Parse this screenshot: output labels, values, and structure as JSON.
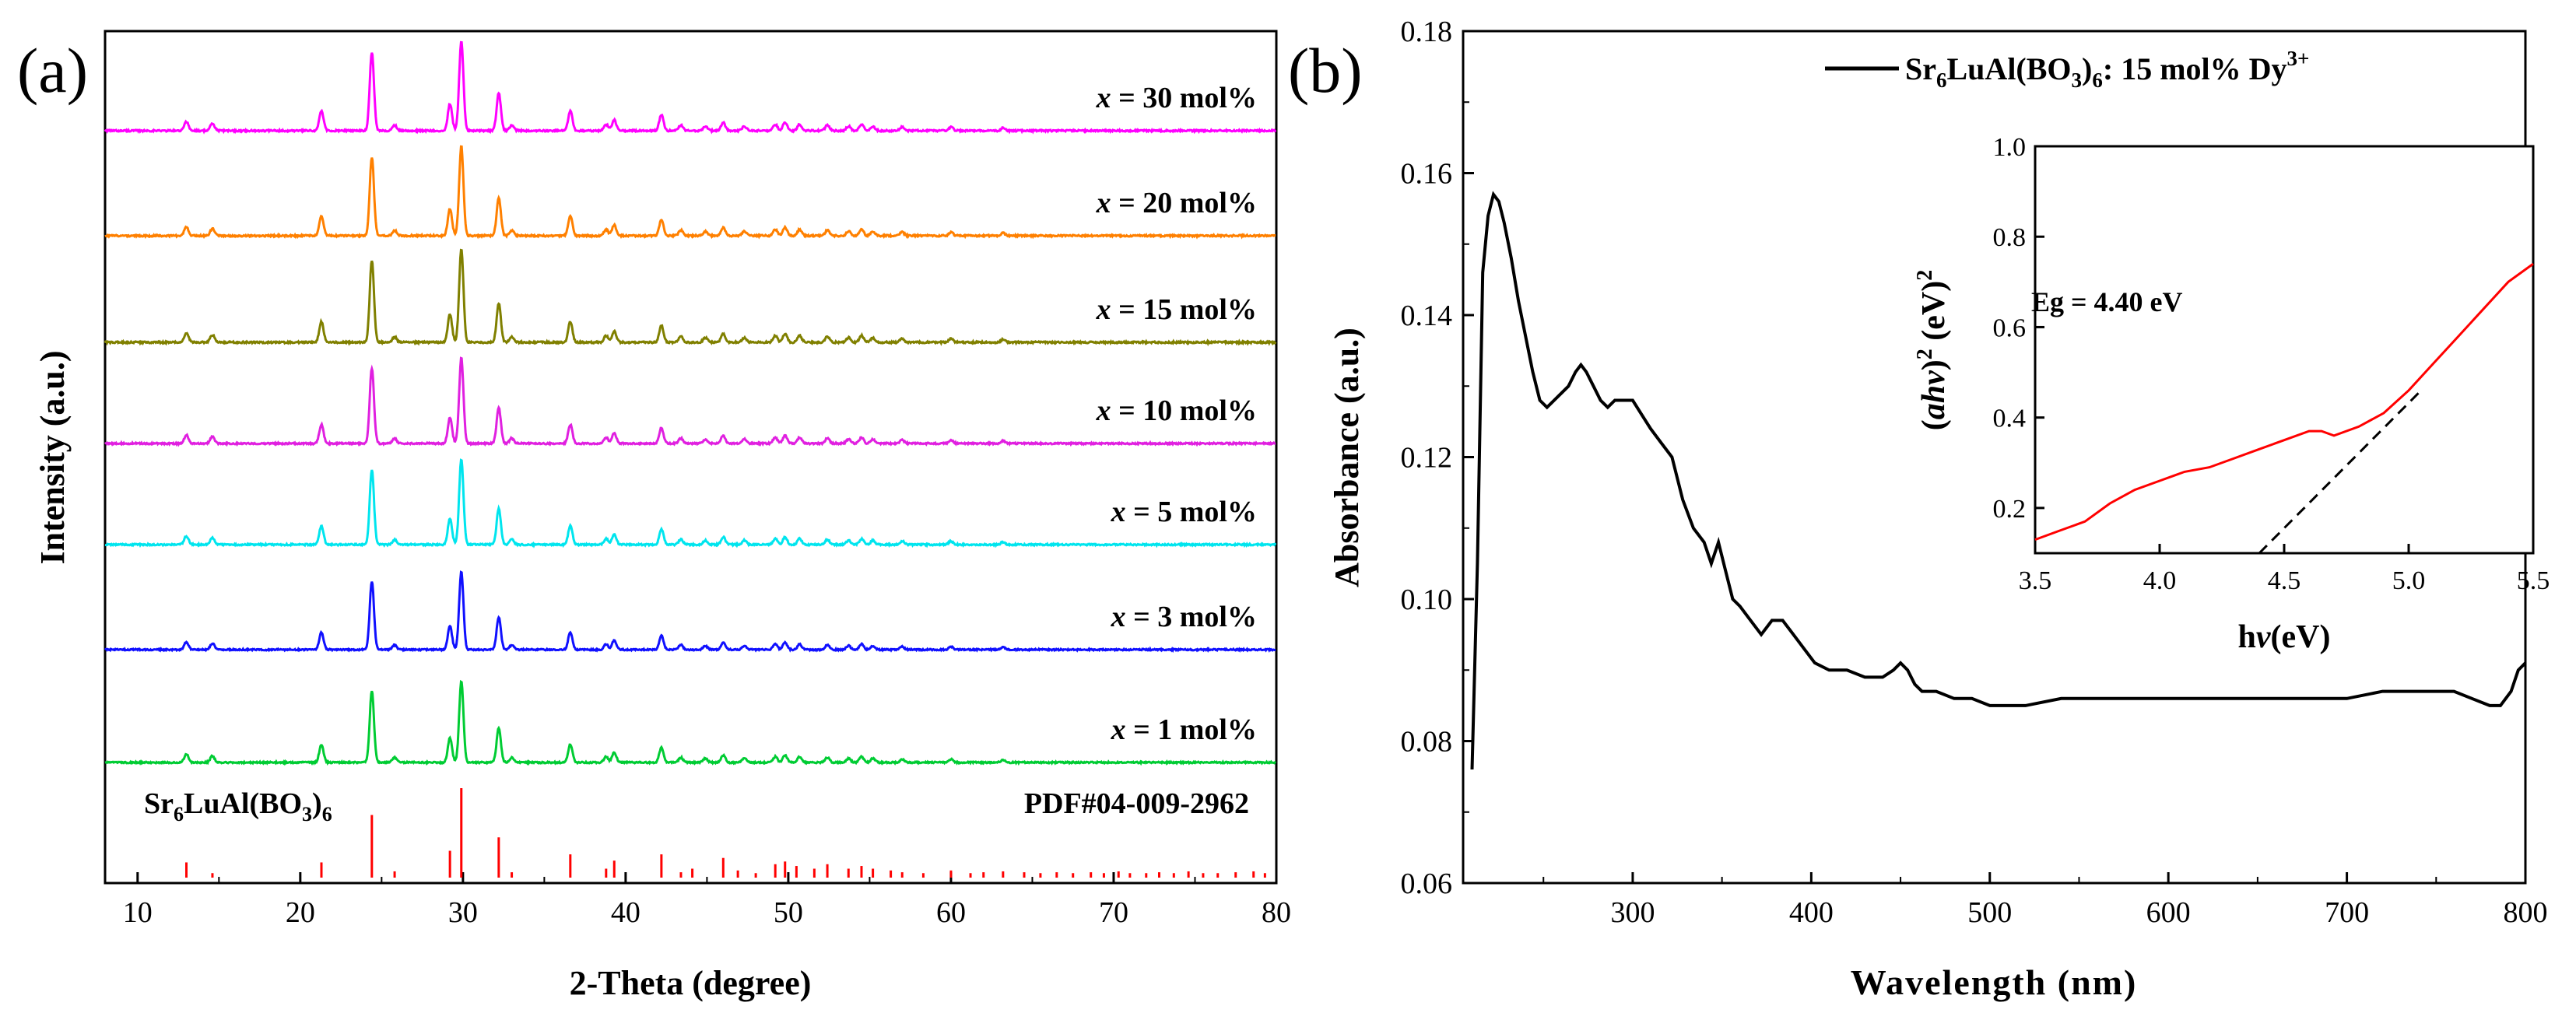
{
  "panels": {
    "a_label": "(a)",
    "b_label": "(b)"
  },
  "chart_data": [
    {
      "type": "line",
      "title": "",
      "xlabel": "2-Theta (degree)",
      "ylabel": "Intensity (a.u.)",
      "xlim": [
        8,
        80
      ],
      "xticks": [
        "10",
        "20",
        "30",
        "40",
        "50",
        "60",
        "70",
        "80"
      ],
      "series": [
        {
          "name": "x = 30 mol%",
          "prefix": "x",
          "text": " = 30 mol%",
          "color": "#ff00ff"
        },
        {
          "name": "x = 20 mol%",
          "prefix": "x",
          "text": " = 20 mol%",
          "color": "#ff8000"
        },
        {
          "name": "x = 15 mol%",
          "prefix": "x",
          "text": " = 15 mol%",
          "color": "#808000"
        },
        {
          "name": "x = 10 mol%",
          "prefix": "x",
          "text": " = 10 mol%",
          "color": "#e020e0"
        },
        {
          "name": "x = 5 mol%",
          "prefix": "x",
          "text": " = 5 mol%",
          "color": "#00e5ee"
        },
        {
          "name": "x = 3 mol%",
          "prefix": "x",
          "text": " = 3 mol%",
          "color": "#1010ff"
        },
        {
          "name": "x = 1 mol%",
          "prefix": "x",
          "text": " = 1 mol%",
          "color": "#00cc33"
        }
      ],
      "peaks": [
        {
          "x": 13.0,
          "h": 0.1
        },
        {
          "x": 14.6,
          "h": 0.08
        },
        {
          "x": 21.3,
          "h": 0.22
        },
        {
          "x": 24.4,
          "h": 0.88
        },
        {
          "x": 25.8,
          "h": 0.06
        },
        {
          "x": 29.2,
          "h": 0.3
        },
        {
          "x": 29.9,
          "h": 1.0
        },
        {
          "x": 32.2,
          "h": 0.42
        },
        {
          "x": 33.0,
          "h": 0.06
        },
        {
          "x": 36.6,
          "h": 0.22
        },
        {
          "x": 38.8,
          "h": 0.07
        },
        {
          "x": 39.3,
          "h": 0.12
        },
        {
          "x": 42.2,
          "h": 0.18
        },
        {
          "x": 43.4,
          "h": 0.06
        },
        {
          "x": 44.9,
          "h": 0.05
        },
        {
          "x": 46.0,
          "h": 0.09
        },
        {
          "x": 47.3,
          "h": 0.05
        },
        {
          "x": 49.2,
          "h": 0.07
        },
        {
          "x": 49.8,
          "h": 0.09
        },
        {
          "x": 50.7,
          "h": 0.07
        },
        {
          "x": 52.4,
          "h": 0.06
        },
        {
          "x": 53.7,
          "h": 0.05
        },
        {
          "x": 54.5,
          "h": 0.07
        },
        {
          "x": 55.2,
          "h": 0.05
        },
        {
          "x": 57.0,
          "h": 0.04
        },
        {
          "x": 60.0,
          "h": 0.04
        },
        {
          "x": 63.2,
          "h": 0.03
        }
      ],
      "reference": {
        "label_main": "Sr",
        "label_sub1": "6",
        "label_mid": "LuAl(BO",
        "label_sub2": "3",
        "label_end": ")",
        "label_sub3": "6",
        "pdf": "PDF#04-009-2962",
        "color": "#ff0000",
        "sticks": [
          {
            "x": 13.0,
            "h": 0.17
          },
          {
            "x": 14.6,
            "h": 0.05
          },
          {
            "x": 21.3,
            "h": 0.17
          },
          {
            "x": 24.4,
            "h": 0.7
          },
          {
            "x": 25.8,
            "h": 0.07
          },
          {
            "x": 29.2,
            "h": 0.3
          },
          {
            "x": 29.9,
            "h": 1.0
          },
          {
            "x": 32.2,
            "h": 0.45
          },
          {
            "x": 33.0,
            "h": 0.06
          },
          {
            "x": 36.6,
            "h": 0.26
          },
          {
            "x": 38.8,
            "h": 0.1
          },
          {
            "x": 39.3,
            "h": 0.19
          },
          {
            "x": 42.2,
            "h": 0.26
          },
          {
            "x": 43.4,
            "h": 0.06
          },
          {
            "x": 44.1,
            "h": 0.1
          },
          {
            "x": 46.0,
            "h": 0.22
          },
          {
            "x": 46.9,
            "h": 0.08
          },
          {
            "x": 48.0,
            "h": 0.05
          },
          {
            "x": 49.2,
            "h": 0.15
          },
          {
            "x": 49.8,
            "h": 0.18
          },
          {
            "x": 50.5,
            "h": 0.13
          },
          {
            "x": 51.6,
            "h": 0.1
          },
          {
            "x": 52.4,
            "h": 0.15
          },
          {
            "x": 53.7,
            "h": 0.1
          },
          {
            "x": 54.5,
            "h": 0.13
          },
          {
            "x": 55.2,
            "h": 0.1
          },
          {
            "x": 56.3,
            "h": 0.08
          },
          {
            "x": 57.0,
            "h": 0.06
          },
          {
            "x": 58.3,
            "h": 0.05
          },
          {
            "x": 60.0,
            "h": 0.08
          },
          {
            "x": 61.2,
            "h": 0.05
          },
          {
            "x": 62.0,
            "h": 0.06
          },
          {
            "x": 63.2,
            "h": 0.07
          },
          {
            "x": 64.5,
            "h": 0.06
          },
          {
            "x": 65.5,
            "h": 0.05
          },
          {
            "x": 66.5,
            "h": 0.06
          },
          {
            "x": 67.5,
            "h": 0.05
          },
          {
            "x": 68.6,
            "h": 0.06
          },
          {
            "x": 69.4,
            "h": 0.05
          },
          {
            "x": 70.3,
            "h": 0.07
          },
          {
            "x": 71.0,
            "h": 0.05
          },
          {
            "x": 72.0,
            "h": 0.05
          },
          {
            "x": 72.8,
            "h": 0.06
          },
          {
            "x": 73.7,
            "h": 0.05
          },
          {
            "x": 74.6,
            "h": 0.07
          },
          {
            "x": 75.5,
            "h": 0.05
          },
          {
            "x": 76.4,
            "h": 0.05
          },
          {
            "x": 77.5,
            "h": 0.06
          },
          {
            "x": 78.6,
            "h": 0.07
          },
          {
            "x": 79.3,
            "h": 0.05
          }
        ]
      }
    },
    {
      "type": "line",
      "title": "",
      "xlabel": "Wavelength (nm)",
      "ylabel": "Absorbance (a.u.)",
      "xlim": [
        205,
        800
      ],
      "ylim": [
        0.06,
        0.18
      ],
      "xticks": [
        "300",
        "400",
        "500",
        "600",
        "700",
        "800"
      ],
      "yticks": [
        "0.06",
        "0.08",
        "0.10",
        "0.12",
        "0.14",
        "0.16",
        "0.18"
      ],
      "legend": {
        "main": "Sr",
        "sub1": "6",
        "mid": "LuAl(BO",
        "sub2": "3",
        "end": ")",
        "sub3": "6",
        "tail": ": 15 mol% Dy",
        "sup": "3+"
      },
      "series": [
        {
          "name": "Sr6LuAl(BO3)6: 15 mol% Dy3+",
          "color": "#000000",
          "x": [
            210,
            213,
            216,
            219,
            222,
            225,
            228,
            232,
            236,
            240,
            244,
            248,
            252,
            256,
            260,
            264,
            268,
            271,
            274,
            278,
            282,
            286,
            290,
            295,
            300,
            305,
            310,
            316,
            322,
            328,
            334,
            340,
            344,
            348,
            352,
            356,
            360,
            366,
            372,
            378,
            384,
            390,
            396,
            402,
            410,
            420,
            430,
            440,
            446,
            450,
            454,
            458,
            462,
            470,
            480,
            490,
            500,
            520,
            540,
            560,
            600,
            650,
            700,
            720,
            740,
            760,
            770,
            780,
            786,
            792,
            796,
            800
          ],
          "y": [
            0.076,
            0.105,
            0.146,
            0.154,
            0.157,
            0.156,
            0.153,
            0.148,
            0.142,
            0.137,
            0.132,
            0.128,
            0.127,
            0.128,
            0.129,
            0.13,
            0.132,
            0.133,
            0.132,
            0.13,
            0.128,
            0.127,
            0.128,
            0.128,
            0.128,
            0.126,
            0.124,
            0.122,
            0.12,
            0.114,
            0.11,
            0.108,
            0.105,
            0.108,
            0.104,
            0.1,
            0.099,
            0.097,
            0.095,
            0.097,
            0.097,
            0.095,
            0.093,
            0.091,
            0.09,
            0.09,
            0.089,
            0.089,
            0.09,
            0.091,
            0.09,
            0.088,
            0.087,
            0.087,
            0.086,
            0.086,
            0.085,
            0.085,
            0.086,
            0.086,
            0.086,
            0.086,
            0.086,
            0.087,
            0.087,
            0.087,
            0.086,
            0.085,
            0.085,
            0.087,
            0.09,
            0.091
          ]
        }
      ],
      "inset": {
        "type": "line",
        "xlabel_prefix": "h",
        "xlabel_var": "v",
        "xlabel_suffix": "(eV)",
        "ylabel_open": "(",
        "ylabel_var": "ahv",
        "ylabel_close": ")",
        "ylabel_sup1": "2",
        "ylabel_unit": " (eV)",
        "ylabel_sup2": "2",
        "xlim": [
          3.5,
          5.5
        ],
        "ylim": [
          0.1,
          1.0
        ],
        "xticks": [
          "3.5",
          "4.0",
          "4.5",
          "5.0",
          "5.5"
        ],
        "yticks": [
          "0.2",
          "0.4",
          "0.6",
          "0.8",
          "1.0"
        ],
        "annotation": "Eg = 4.40 eV",
        "curve_color": "#ff0000",
        "fit_color": "#000000",
        "x": [
          3.5,
          3.6,
          3.7,
          3.8,
          3.9,
          4.0,
          4.1,
          4.2,
          4.3,
          4.4,
          4.5,
          4.6,
          4.65,
          4.7,
          4.8,
          4.9,
          5.0,
          5.1,
          5.2,
          5.3,
          5.4,
          5.5
        ],
        "y": [
          0.13,
          0.15,
          0.17,
          0.21,
          0.24,
          0.26,
          0.28,
          0.29,
          0.31,
          0.33,
          0.35,
          0.37,
          0.37,
          0.36,
          0.38,
          0.41,
          0.46,
          0.52,
          0.58,
          0.64,
          0.7,
          0.74
        ],
        "fit_x": [
          4.4,
          5.05
        ],
        "fit_y": [
          0.1,
          0.46
        ]
      }
    }
  ]
}
